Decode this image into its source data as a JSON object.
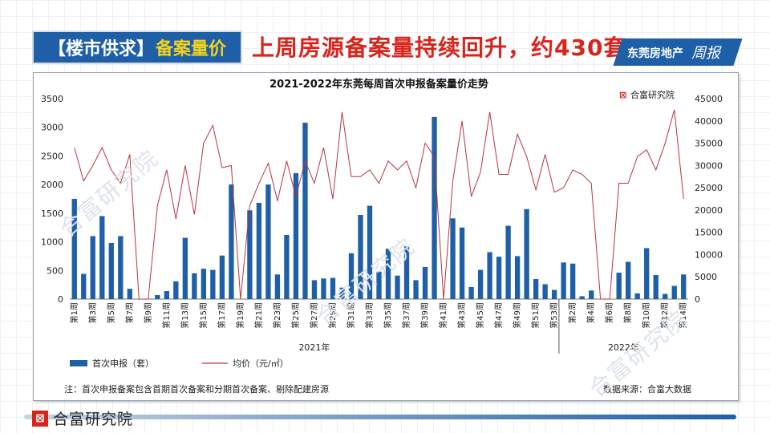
{
  "header": {
    "tag_left": "【楼市供求】",
    "tag_right": "备案量价",
    "headline": "上周房源备案量持续回升，约430套",
    "banner_text": "东莞房地产",
    "banner_script": "周报"
  },
  "footer": {
    "logo_mark": "⊠",
    "logo_text": "合富研究院"
  },
  "watermark_text": "合富研究院",
  "chart_data": {
    "type": "bar",
    "title": "2021-2022年东莞每周首次申报备案量价走势",
    "brand": "合富研究院",
    "brand_mark": "⊠",
    "categories": [
      "第1周",
      "第2周",
      "第3周",
      "第4周",
      "第5周",
      "第6周",
      "第7周",
      "第8周",
      "第9周",
      "第10周",
      "第11周",
      "第12周",
      "第13周",
      "第14周",
      "第15周",
      "第16周",
      "第17周",
      "第18周",
      "第19周",
      "第20周",
      "第21周",
      "第22周",
      "第23周",
      "第24周",
      "第25周",
      "第26周",
      "第27周",
      "第28周",
      "第29周",
      "第30周",
      "第31周",
      "第32周",
      "第33周",
      "第34周",
      "第35周",
      "第36周",
      "第37周",
      "第38周",
      "第39周",
      "第40周",
      "第41周",
      "第42周",
      "第43周",
      "第44周",
      "第45周",
      "第46周",
      "第47周",
      "第48周",
      "第49周",
      "第50周",
      "第51周",
      "第52周",
      "第53周",
      "第1周",
      "第2周",
      "第3周",
      "第4周",
      "第5周",
      "第6周",
      "第7周",
      "第8周",
      "第9周",
      "第10周",
      "第11周",
      "第12周",
      "第13周",
      "第14周"
    ],
    "tick_labels": [
      "第1周",
      "第3周",
      "第5周",
      "第7周",
      "第9周",
      "第11周",
      "第13周",
      "第15周",
      "第17周",
      "第19周",
      "第21周",
      "第23周",
      "第25周",
      "第27周",
      "第29周",
      "第31周",
      "第33周",
      "第35周",
      "第37周",
      "第39周",
      "第41周",
      "第43周",
      "第45周",
      "第47周",
      "第49周",
      "第51周",
      "第53周",
      "第2周",
      "第4周",
      "第6周",
      "第8周",
      "第10周",
      "第12周",
      "第14周"
    ],
    "year_groups": [
      {
        "label": "2021年",
        "start": 0,
        "end": 52
      },
      {
        "label": "2022年",
        "start": 53,
        "end": 66
      }
    ],
    "series": [
      {
        "name": "首次申报（套）",
        "type": "bar",
        "axis": "left",
        "color": "#1f5fa8",
        "values": [
          1750,
          440,
          1100,
          1450,
          980,
          1100,
          180,
          0,
          0,
          70,
          140,
          310,
          1070,
          450,
          530,
          510,
          760,
          2000,
          0,
          1550,
          1680,
          2000,
          430,
          1120,
          2200,
          3080,
          330,
          360,
          370,
          200,
          800,
          1470,
          1630,
          480,
          880,
          410,
          920,
          330,
          560,
          3180,
          0,
          1410,
          1250,
          210,
          510,
          820,
          740,
          1280,
          750,
          1570,
          350,
          260,
          160,
          640,
          620,
          50,
          150,
          0,
          0,
          460,
          650,
          100,
          890,
          420,
          90,
          230,
          430
        ]
      },
      {
        "name": "均价（元/㎡）",
        "type": "line",
        "axis": "right",
        "color": "#b6343f",
        "values": [
          34000,
          26500,
          30000,
          34000,
          29000,
          26000,
          32500,
          0,
          0,
          21000,
          29000,
          18000,
          30000,
          19000,
          35000,
          39000,
          29500,
          30000,
          0,
          21000,
          26000,
          30500,
          22000,
          31000,
          23000,
          31000,
          26000,
          34000,
          22500,
          42000,
          27500,
          27500,
          29000,
          26000,
          31000,
          29000,
          31000,
          25000,
          35000,
          32000,
          0,
          26500,
          40000,
          23000,
          28500,
          42000,
          28000,
          28000,
          37000,
          32000,
          24500,
          32500,
          24000,
          25000,
          29000,
          28000,
          26000,
          0,
          0,
          26000,
          26000,
          32000,
          33500,
          29000,
          35000,
          42500,
          22500
        ]
      }
    ],
    "left_axis": {
      "min": 0,
      "max": 3500,
      "ticks": [
        0,
        500,
        1000,
        1500,
        2000,
        2500,
        3000,
        3500
      ]
    },
    "right_axis": {
      "min": 0,
      "max": 45000,
      "ticks": [
        0,
        5000,
        10000,
        15000,
        20000,
        25000,
        30000,
        35000,
        40000,
        45000
      ]
    },
    "legend": {
      "placement": "bottom-left"
    },
    "note": "注：首次申报备案包含首期首次备案和分期首次备案、剔除配建房源",
    "source": "数据来源：合富大数据"
  }
}
